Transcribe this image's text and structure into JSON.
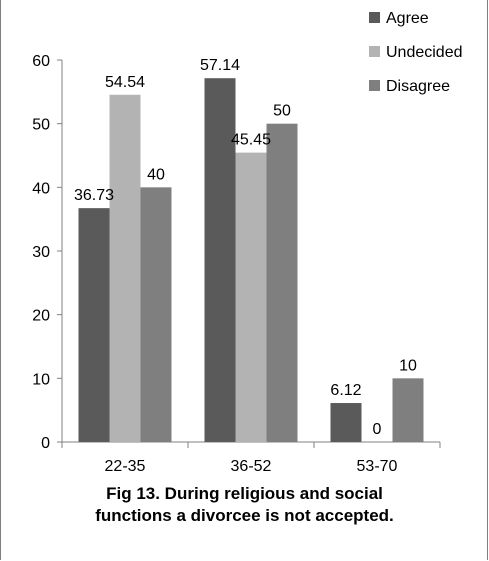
{
  "chart_data": {
    "type": "bar",
    "title": "",
    "xlabel": "",
    "ylabel": "",
    "categories": [
      "22-35",
      "36-52",
      "53-70"
    ],
    "series": [
      {
        "name": "Agree",
        "values": [
          36.73,
          57.14,
          6.12
        ],
        "labels": [
          "36.73",
          "57.14",
          "6.12"
        ],
        "color": "#5a5a5a"
      },
      {
        "name": "Undecided",
        "values": [
          54.54,
          45.45,
          0
        ],
        "labels": [
          "54.54",
          "45.45",
          "0"
        ],
        "color": "#b3b3b3"
      },
      {
        "name": "Disagree",
        "values": [
          40,
          50,
          10
        ],
        "labels": [
          "40",
          "50",
          "10"
        ],
        "color": "#7f7f7f"
      }
    ],
    "ylim": [
      0,
      60
    ],
    "yticks": [
      0,
      10,
      20,
      30,
      40,
      50,
      60
    ],
    "grid": false,
    "legend_position": "top-right"
  },
  "caption": {
    "line1": "Fig 13. During religious and social",
    "line2": "functions a divorcee is not accepted."
  }
}
